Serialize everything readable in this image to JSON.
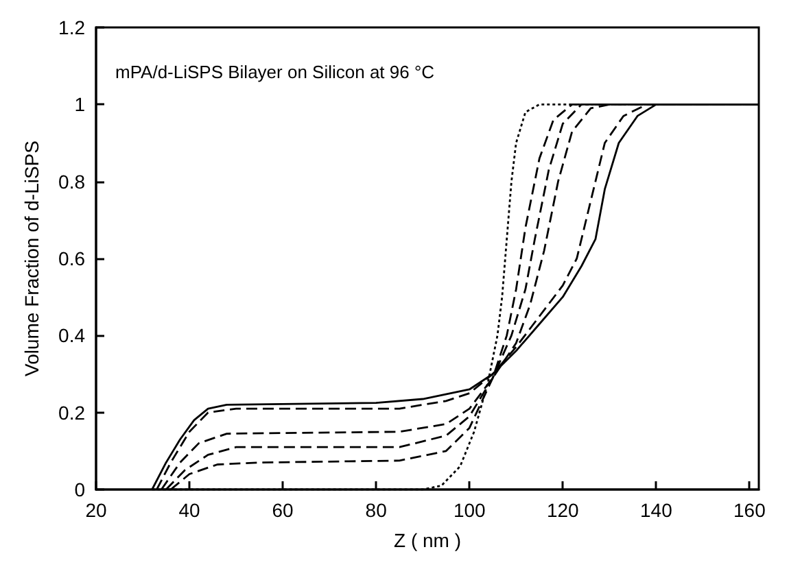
{
  "chart_data": {
    "type": "line",
    "xlabel": "Z ( nm )",
    "ylabel": "Volume Fraction of d-LiSPS",
    "annotations": [
      "mPA/d-LiSPS Bilayer on Silicon at 96 °C"
    ],
    "xlim": [
      20,
      162
    ],
    "xticks": [
      20,
      40,
      60,
      80,
      100,
      120,
      140,
      160
    ],
    "ylim": [
      0,
      1.2
    ],
    "yticks": [
      0,
      0.2,
      0.4,
      0.6,
      0.8,
      1,
      1.2
    ],
    "grid": false,
    "marker": "none",
    "series": [
      {
        "color": "#000000",
        "line_style": "solid",
        "x": [
          32,
          35,
          38,
          41,
          44,
          48,
          80,
          90,
          100,
          105,
          110,
          115,
          120,
          124,
          127,
          129,
          132,
          136,
          140,
          162
        ],
        "values": [
          0,
          0.07,
          0.13,
          0.18,
          0.21,
          0.22,
          0.225,
          0.235,
          0.26,
          0.3,
          0.36,
          0.43,
          0.5,
          0.58,
          0.65,
          0.78,
          0.9,
          0.97,
          1,
          1
        ]
      },
      {
        "color": "#000000",
        "line_style": "dashed",
        "x": [
          33,
          36,
          40,
          44,
          50,
          85,
          95,
          100,
          105,
          110,
          115,
          120,
          123,
          126,
          129,
          133,
          138,
          162
        ],
        "values": [
          0,
          0.07,
          0.15,
          0.2,
          0.21,
          0.21,
          0.23,
          0.25,
          0.3,
          0.37,
          0.45,
          0.53,
          0.6,
          0.75,
          0.9,
          0.97,
          1,
          1
        ]
      },
      {
        "color": "#000000",
        "line_style": "dashed",
        "x": [
          34,
          38,
          42,
          48,
          85,
          95,
          100,
          105,
          110,
          113,
          116,
          119,
          122,
          126,
          130,
          162
        ],
        "values": [
          0,
          0.07,
          0.12,
          0.145,
          0.15,
          0.17,
          0.21,
          0.29,
          0.38,
          0.48,
          0.62,
          0.8,
          0.93,
          0.99,
          1,
          1
        ]
      },
      {
        "color": "#000000",
        "line_style": "dashed",
        "x": [
          35,
          39,
          44,
          50,
          85,
          95,
          100,
          105,
          109,
          112,
          114,
          117,
          120,
          124,
          162
        ],
        "values": [
          0,
          0.05,
          0.09,
          0.11,
          0.11,
          0.14,
          0.19,
          0.29,
          0.4,
          0.52,
          0.65,
          0.83,
          0.95,
          1,
          1
        ]
      },
      {
        "color": "#000000",
        "line_style": "dashed",
        "x": [
          36,
          40,
          46,
          55,
          85,
          95,
          100,
          105,
          108,
          110,
          112,
          115,
          118,
          122,
          162
        ],
        "values": [
          0,
          0.04,
          0.065,
          0.07,
          0.075,
          0.1,
          0.16,
          0.29,
          0.4,
          0.52,
          0.68,
          0.86,
          0.96,
          1,
          1
        ]
      },
      {
        "color": "#000000",
        "line_style": "dotted",
        "x": [
          32,
          90,
          94,
          98,
          101,
          104,
          106,
          107,
          108,
          109,
          110,
          112,
          115,
          162
        ],
        "values": [
          0,
          0,
          0.01,
          0.06,
          0.15,
          0.28,
          0.4,
          0.5,
          0.65,
          0.8,
          0.9,
          0.98,
          1,
          1
        ]
      }
    ]
  }
}
